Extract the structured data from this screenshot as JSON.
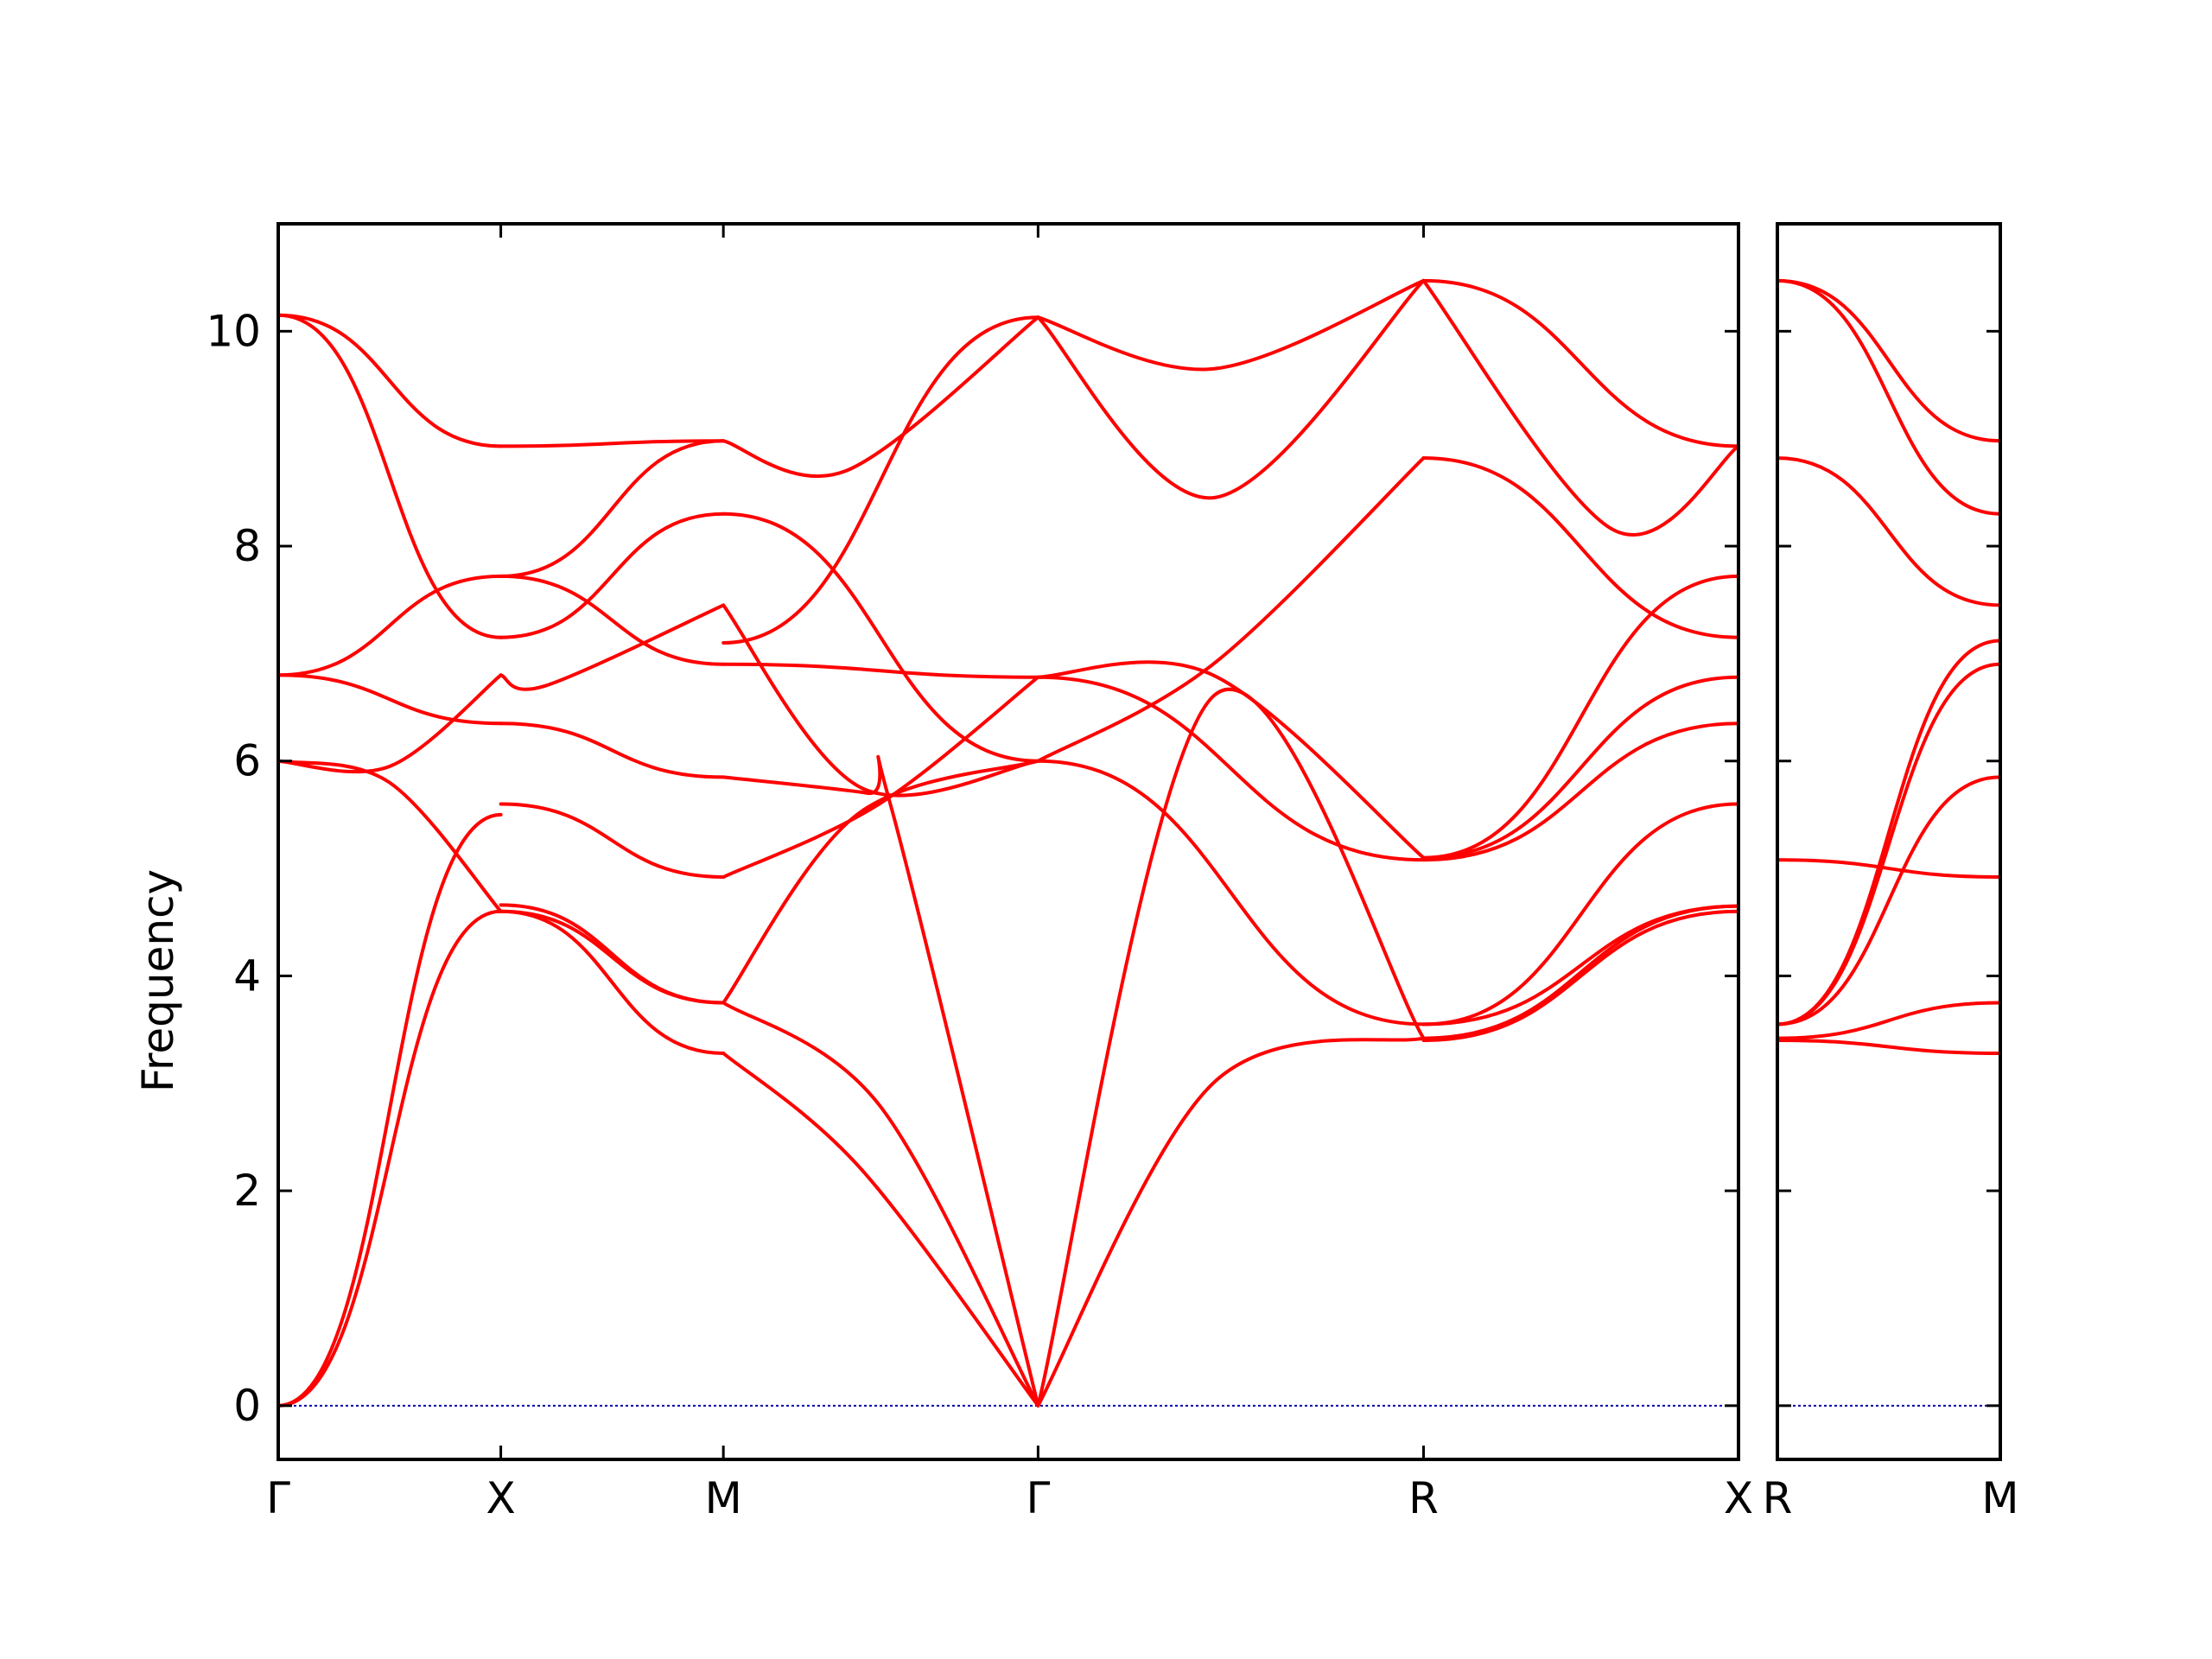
{
  "chart_data": {
    "type": "line",
    "title": "",
    "ylabel": "Frequency",
    "ylim": [
      -0.5,
      11.0
    ],
    "yticks": [
      0,
      2,
      4,
      6,
      8,
      10
    ],
    "ytick_labels": [
      "0",
      "2",
      "4",
      "6",
      "8",
      "10"
    ],
    "line_color": "#ff0000",
    "zero_line_color": "#0000aa",
    "grid": false,
    "panels": [
      {
        "name": "panel-1",
        "xticks": [
          0,
          1,
          2,
          3.414,
          5.146,
          6.561
        ],
        "xtick_labels": [
          "Γ",
          "X",
          "M",
          "Γ",
          "R",
          "X"
        ],
        "xlim": [
          0,
          6.561
        ],
        "branches": [
          {
            "x": [
              0,
              1
            ],
            "y": [
              0,
              4.6
            ]
          },
          {
            "x": [
              0,
              1
            ],
            "y": [
              0,
              5.5
            ]
          },
          {
            "x": [
              0,
              0.5,
              1
            ],
            "y": [
              6.0,
              5.95,
              6.8
            ]
          },
          {
            "x": [
              0,
              0.5,
              1
            ],
            "y": [
              6.0,
              5.8,
              4.6
            ]
          },
          {
            "x": [
              0,
              1
            ],
            "y": [
              6.8,
              6.35
            ]
          },
          {
            "x": [
              0,
              1
            ],
            "y": [
              6.8,
              7.72
            ]
          },
          {
            "x": [
              0,
              1
            ],
            "y": [
              10.15,
              7.15
            ]
          },
          {
            "x": [
              0,
              1
            ],
            "y": [
              10.15,
              8.93
            ]
          },
          {
            "x": [
              1,
              2
            ],
            "y": [
              4.6,
              3.28
            ]
          },
          {
            "x": [
              1,
              2
            ],
            "y": [
              4.6,
              3.75
            ]
          },
          {
            "x": [
              1,
              2
            ],
            "y": [
              4.66,
              3.75
            ]
          },
          {
            "x": [
              1,
              2
            ],
            "y": [
              5.6,
              4.92
            ]
          },
          {
            "x": [
              1,
              1.2,
              2
            ],
            "y": [
              6.8,
              6.7,
              7.45
            ]
          },
          {
            "x": [
              1,
              2
            ],
            "y": [
              6.35,
              5.85
            ]
          },
          {
            "x": [
              1,
              2
            ],
            "y": [
              7.72,
              6.9
            ]
          },
          {
            "x": [
              1,
              2
            ],
            "y": [
              7.15,
              8.3
            ]
          },
          {
            "x": [
              1,
              2
            ],
            "y": [
              8.93,
              8.98
            ]
          },
          {
            "x": [
              1,
              2
            ],
            "y": [
              7.72,
              8.98
            ]
          },
          {
            "x": [
              2,
              2.62,
              3.414
            ],
            "y": [
              3.28,
              2.2,
              0
            ]
          },
          {
            "x": [
              2,
              2.7,
              3.414
            ],
            "y": [
              3.75,
              2.8,
              0
            ]
          },
          {
            "x": [
              2,
              2.6,
              3.414
            ],
            "y": [
              3.75,
              5.5,
              6.0
            ]
          },
          {
            "x": [
              2,
              2.7,
              3.414
            ],
            "y": [
              4.92,
              5.6,
              6.78
            ]
          },
          {
            "x": [
              2,
              2.65,
              2.75,
              3.414
            ],
            "y": [
              5.85,
              5.7,
              5.6,
              0
            ]
          },
          {
            "x": [
              2,
              3.414
            ],
            "y": [
              6.9,
              6.78
            ]
          },
          {
            "x": [
              2,
              2.62,
              3.414
            ],
            "y": [
              7.45,
              5.75,
              6.0
            ]
          },
          {
            "x": [
              2,
              3.414
            ],
            "y": [
              8.3,
              6.0
            ]
          },
          {
            "x": [
              2,
              3.414
            ],
            "y": [
              7.1,
              10.13
            ]
          },
          {
            "x": [
              2,
              2.55,
              3.414
            ],
            "y": [
              8.98,
              8.7,
              10.13
            ]
          },
          {
            "x": [
              3.414,
              4.2,
              5.146
            ],
            "y": [
              0,
              3.0,
              3.42
            ]
          },
          {
            "x": [
              3.414,
              4.2,
              5.146
            ],
            "y": [
              0,
              6.6,
              3.42
            ]
          },
          {
            "x": [
              3.414,
              5.146
            ],
            "y": [
              6.0,
              3.55
            ]
          },
          {
            "x": [
              3.414,
              4.2,
              5.146
            ],
            "y": [
              6.0,
              6.9,
              8.82
            ]
          },
          {
            "x": [
              3.414,
              4.2,
              5.146
            ],
            "y": [
              6.78,
              6.8,
              5.1
            ]
          },
          {
            "x": [
              3.414,
              5.146
            ],
            "y": [
              6.78,
              5.08
            ]
          },
          {
            "x": [
              3.414,
              4.2,
              5.146
            ],
            "y": [
              10.13,
              8.45,
              10.47
            ]
          },
          {
            "x": [
              3.414,
              4.2,
              5.146
            ],
            "y": [
              10.13,
              9.65,
              10.47
            ]
          },
          {
            "x": [
              5.146,
              6.561
            ],
            "y": [
              3.4,
              4.6
            ]
          },
          {
            "x": [
              5.146,
              6.561
            ],
            "y": [
              3.42,
              4.65
            ]
          },
          {
            "x": [
              5.146,
              6.561
            ],
            "y": [
              3.55,
              4.65
            ]
          },
          {
            "x": [
              5.146,
              6.561
            ],
            "y": [
              3.55,
              5.6
            ]
          },
          {
            "x": [
              5.146,
              6.561
            ],
            "y": [
              5.08,
              6.35
            ]
          },
          {
            "x": [
              5.146,
              6.561
            ],
            "y": [
              5.1,
              6.78
            ]
          },
          {
            "x": [
              5.146,
              6.561
            ],
            "y": [
              5.1,
              7.72
            ]
          },
          {
            "x": [
              5.146,
              6.561
            ],
            "y": [
              8.82,
              7.15
            ]
          },
          {
            "x": [
              5.146,
              6.561
            ],
            "y": [
              10.47,
              8.93
            ]
          },
          {
            "x": [
              5.146,
              6.0,
              6.561
            ],
            "y": [
              10.47,
              8.15,
              8.93
            ]
          }
        ]
      },
      {
        "name": "panel-2",
        "xticks": [
          0,
          1
        ],
        "xtick_labels": [
          "R",
          "M"
        ],
        "xlim": [
          0,
          1
        ],
        "branches": [
          {
            "x": [
              0,
              1
            ],
            "y": [
              3.4,
              3.28
            ]
          },
          {
            "x": [
              0,
              1
            ],
            "y": [
              3.42,
              3.75
            ]
          },
          {
            "x": [
              0,
              1
            ],
            "y": [
              3.55,
              6.9
            ]
          },
          {
            "x": [
              0,
              1
            ],
            "y": [
              3.55,
              7.12
            ]
          },
          {
            "x": [
              0,
              1
            ],
            "y": [
              3.55,
              5.85
            ]
          },
          {
            "x": [
              0,
              1
            ],
            "y": [
              5.08,
              4.92
            ]
          },
          {
            "x": [
              0,
              1
            ],
            "y": [
              8.82,
              7.45
            ]
          },
          {
            "x": [
              0,
              1
            ],
            "y": [
              10.47,
              8.3
            ]
          },
          {
            "x": [
              0,
              1
            ],
            "y": [
              10.47,
              8.98
            ]
          }
        ]
      }
    ]
  }
}
